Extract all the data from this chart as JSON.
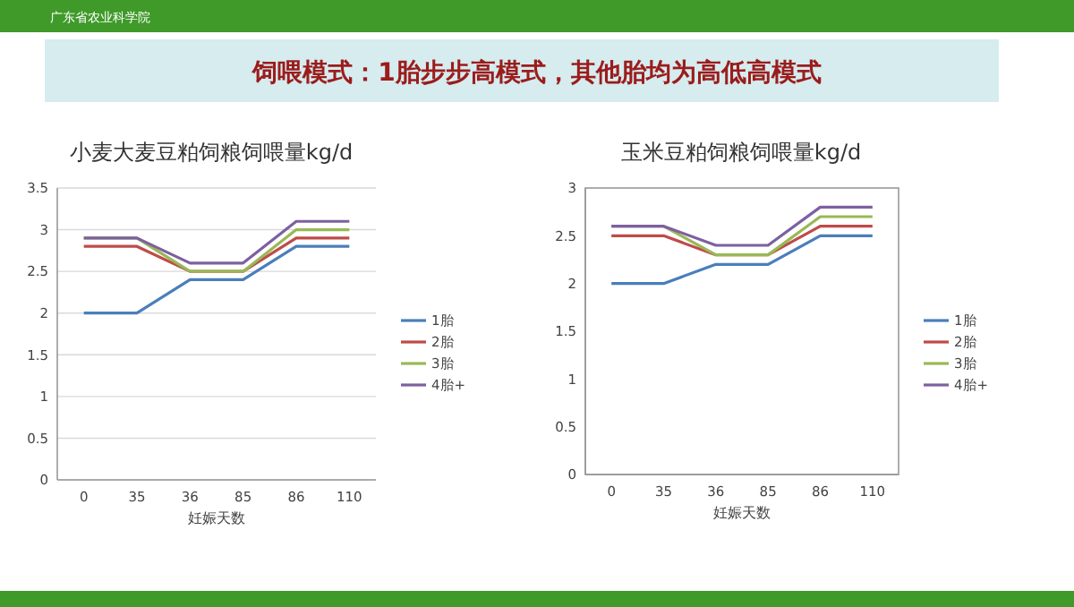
{
  "chart_data": [
    {
      "type": "line",
      "title": "小麦大麦豆粕饲粮饲喂量kg/d",
      "xlabel": "妊娠天数",
      "annotations": [
        "饲喂模式：1胎步步高模式，其他胎均为高低高模式",
        "广东省农业科学院"
      ],
      "categories": [
        "0",
        "35",
        "36",
        "85",
        "86",
        "110"
      ],
      "series": [
        {
          "name": "1胎",
          "color": "#4a7ebb",
          "values": [
            2,
            2,
            2.4,
            2.4,
            2.8,
            2.8
          ]
        },
        {
          "name": "2胎",
          "color": "#be4b48",
          "values": [
            2.8,
            2.8,
            2.5,
            2.5,
            2.9,
            2.9
          ]
        },
        {
          "name": "3胎",
          "color": "#98b954",
          "values": [
            2.9,
            2.9,
            2.5,
            2.5,
            3.0,
            3.0
          ]
        },
        {
          "name": "4胎+",
          "color": "#7d60a0",
          "values": [
            2.9,
            2.9,
            2.6,
            2.6,
            3.1,
            3.1
          ]
        }
      ],
      "ylim": [
        0,
        3.5
      ],
      "yticks": [
        0,
        0.5,
        1,
        1.5,
        2,
        2.5,
        3,
        3.5
      ],
      "grid": "y",
      "legend": "right"
    },
    {
      "type": "line",
      "title": "玉米豆粕饲粮饲喂量kg/d",
      "xlabel": "妊娠天数",
      "categories": [
        "0",
        "35",
        "36",
        "85",
        "86",
        "110"
      ],
      "series": [
        {
          "name": "1胎",
          "color": "#4a7ebb",
          "values": [
            2,
            2,
            2.2,
            2.2,
            2.5,
            2.5
          ]
        },
        {
          "name": "2胎",
          "color": "#be4b48",
          "values": [
            2.5,
            2.5,
            2.3,
            2.3,
            2.6,
            2.6
          ]
        },
        {
          "name": "3胎",
          "color": "#98b954",
          "values": [
            2.6,
            2.6,
            2.3,
            2.3,
            2.7,
            2.7
          ]
        },
        {
          "name": "4胎+",
          "color": "#7d60a0",
          "values": [
            2.6,
            2.6,
            2.4,
            2.4,
            2.8,
            2.8
          ]
        }
      ],
      "ylim": [
        0,
        3
      ],
      "yticks": [
        0,
        0.5,
        1,
        1.5,
        2,
        2.5,
        3
      ],
      "grid": false,
      "legend": "right"
    }
  ]
}
